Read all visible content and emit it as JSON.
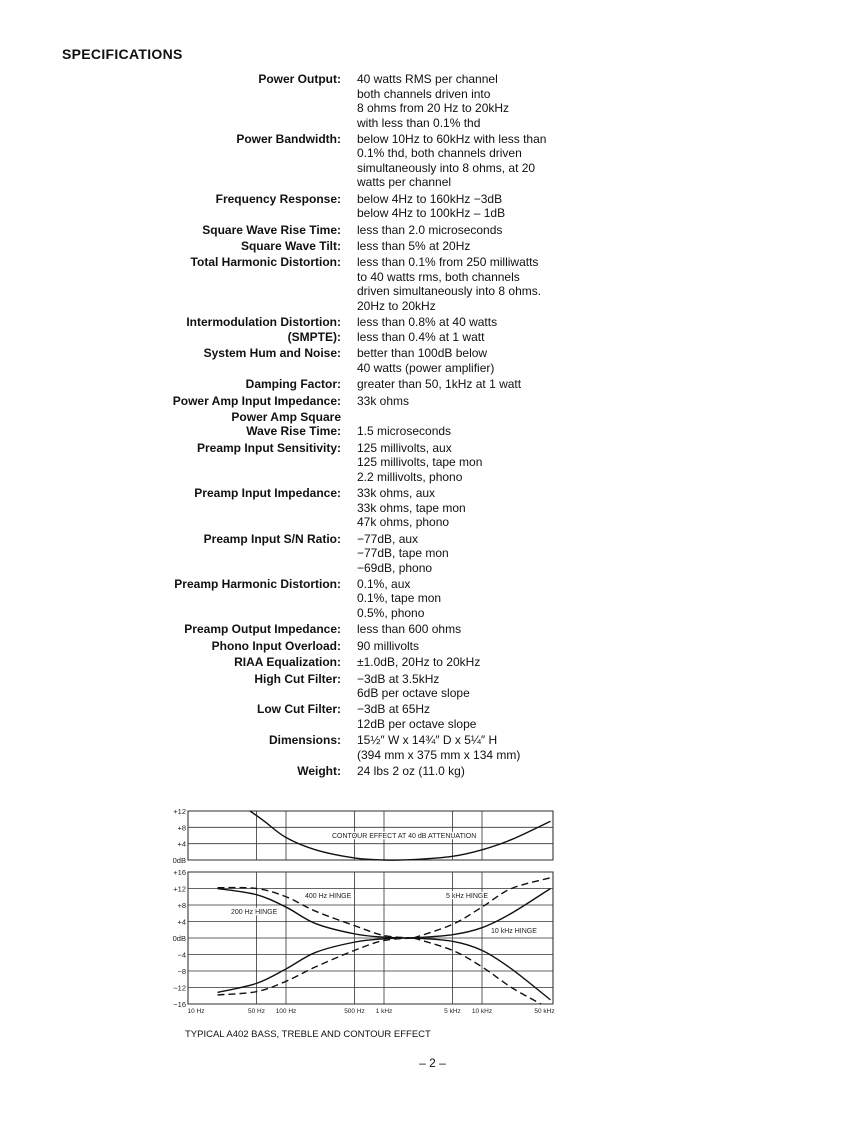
{
  "title": "SPECIFICATIONS",
  "specs": [
    {
      "label": "Power Output:",
      "value": "40 watts RMS per channel\nboth channels driven into\n8 ohms from 20 Hz to 20kHz\nwith less than 0.1% thd"
    },
    {
      "label": "Power Bandwidth:",
      "value": "below 10Hz to 60kHz with less than\n0.1% thd, both channels driven\nsimultaneously into 8 ohms, at 20\nwatts per channel"
    },
    {
      "label": "Frequency Response:",
      "value": "below 4Hz to 160kHz −3dB\nbelow 4Hz to 100kHz – 1dB"
    },
    {
      "label": "Square Wave Rise Time:",
      "value": "less than 2.0 microseconds"
    },
    {
      "label": "Square Wave Tilt:",
      "value": "less than 5% at 20Hz"
    },
    {
      "label": "Total Harmonic Distortion:",
      "value": "less than 0.1% from 250 milliwatts\nto 40 watts rms, both channels\ndriven simultaneously into 8 ohms.\n20Hz to 20kHz"
    },
    {
      "label": "Intermodulation Distortion:\n(SMPTE):",
      "value": "less than 0.8% at 40 watts\nless than 0.4% at 1 watt"
    },
    {
      "label": "System Hum and Noise:",
      "value": "better than 100dB below\n40 watts (power amplifier)"
    },
    {
      "label": "Damping Factor:",
      "value": "greater than 50, 1kHz at 1 watt"
    },
    {
      "label": "Power Amp Input Impedance:",
      "value": "33k ohms"
    },
    {
      "label": "Power Amp Square\nWave Rise Time:",
      "value": "1.5 microseconds"
    },
    {
      "label": "Preamp Input Sensitivity:",
      "value": "125 millivolts, aux\n125 millivolts, tape mon\n2.2 millivolts, phono"
    },
    {
      "label": "Preamp Input Impedance:",
      "value": "33k ohms, aux\n33k ohms, tape mon\n47k ohms, phono"
    },
    {
      "label": "Preamp Input S/N Ratio:",
      "value": "−77dB, aux\n−77dB, tape mon\n−69dB, phono"
    },
    {
      "label": "Preamp Harmonic Distortion:",
      "value": "0.1%, aux\n0.1%, tape mon\n0.5%, phono"
    },
    {
      "label": "Preamp Output Impedance:",
      "value": "less than 600 ohms"
    },
    {
      "label": "Phono Input Overload:",
      "value": "90 millivolts"
    },
    {
      "label": "RIAA Equalization:",
      "value": "±1.0dB, 20Hz to 20kHz"
    },
    {
      "label": "High Cut Filter:",
      "value": "−3dB at 3.5kHz\n6dB per octave slope"
    },
    {
      "label": "Low Cut Filter:",
      "value": "−3dB at 65Hz\n12dB per octave slope"
    },
    {
      "label": "Dimensions:",
      "value": "15½″ W x 14¾″ D x 5¼″ H\n(394 mm x 375 mm x 134 mm)"
    },
    {
      "label": "Weight:",
      "value": "24 lbs 2 oz (11.0 kg)"
    }
  ],
  "chart_data": [
    {
      "type": "line",
      "x_scale": "log",
      "xlim": [
        10,
        50000
      ],
      "ylim": [
        0,
        12
      ],
      "yticks": [
        "+12",
        "+8",
        "+4",
        "0dB"
      ],
      "ytick_values": [
        12,
        8,
        4,
        0
      ],
      "grid": true,
      "annotations": [
        "CONTOUR EFFECT AT 40 dB ATTENUATION"
      ],
      "series": [
        {
          "style": "solid",
          "x": [
            43,
            60,
            100,
            200,
            500,
            1000,
            2000,
            5000,
            10000,
            20000,
            50000
          ],
          "y": [
            12,
            9.5,
            5.5,
            2.5,
            0.5,
            0,
            0.1,
            0.9,
            2.5,
            5,
            9.5
          ]
        }
      ]
    },
    {
      "type": "line",
      "x_scale": "log",
      "xlim": [
        10,
        50000
      ],
      "ylim": [
        -16,
        16
      ],
      "yticks": [
        "+16",
        "+12",
        "+8",
        "+4",
        "0dB",
        "−4",
        "−8",
        "−12",
        "−16"
      ],
      "ytick_values": [
        16,
        12,
        8,
        4,
        0,
        -4,
        -8,
        -12,
        -16
      ],
      "xticks": [
        "10 Hz",
        "50 Hz",
        "100 Hz",
        "500 Hz",
        "1 kHz",
        "5 kHz",
        "10 kHz",
        "50 kHz"
      ],
      "xtick_values": [
        10,
        50,
        100,
        500,
        1000,
        5000,
        10000,
        50000
      ],
      "grid": true,
      "annotations": [
        "400 Hz HINGE",
        "200 Hz HINGE",
        "5 kHz HINGE",
        "10 kHz HINGE"
      ],
      "series": [
        {
          "style": "solid",
          "x": [
            20,
            50,
            100,
            200,
            500,
            1000,
            2000
          ],
          "y": [
            12,
            10.5,
            7.5,
            3.5,
            1,
            0.2,
            0
          ]
        },
        {
          "style": "dashed",
          "x": [
            20,
            50,
            100,
            200,
            500,
            1000,
            2000
          ],
          "y": [
            12.2,
            12,
            10,
            6.5,
            3,
            0.6,
            0
          ]
        },
        {
          "style": "solid",
          "x": [
            20,
            50,
            100,
            200,
            500,
            1000,
            2000
          ],
          "y": [
            -13.2,
            -11,
            -7.5,
            -3.5,
            -1,
            -0.2,
            0
          ]
        },
        {
          "style": "dashed",
          "x": [
            20,
            50,
            100,
            200,
            500,
            1000,
            2000
          ],
          "y": [
            -13.8,
            -13,
            -10.5,
            -7,
            -3,
            -0.6,
            0
          ]
        },
        {
          "style": "solid",
          "x": [
            2000,
            5000,
            10000,
            20000,
            50000
          ],
          "y": [
            0,
            0.8,
            2.5,
            6,
            12
          ]
        },
        {
          "style": "dashed",
          "x": [
            2000,
            5000,
            10000,
            20000,
            50000
          ],
          "y": [
            0,
            3.3,
            7.5,
            12,
            14.6
          ]
        },
        {
          "style": "solid",
          "x": [
            2000,
            5000,
            10000,
            20000,
            50000
          ],
          "y": [
            0,
            -0.8,
            -3,
            -7.5,
            -15
          ]
        },
        {
          "style": "dashed",
          "x": [
            2000,
            5000,
            10000,
            20000,
            40000
          ],
          "y": [
            0,
            -3,
            -7,
            -12,
            -16
          ]
        }
      ]
    }
  ],
  "caption": "TYPICAL A402 BASS, TREBLE AND CONTOUR EFFECT",
  "page_number": "– 2 –"
}
